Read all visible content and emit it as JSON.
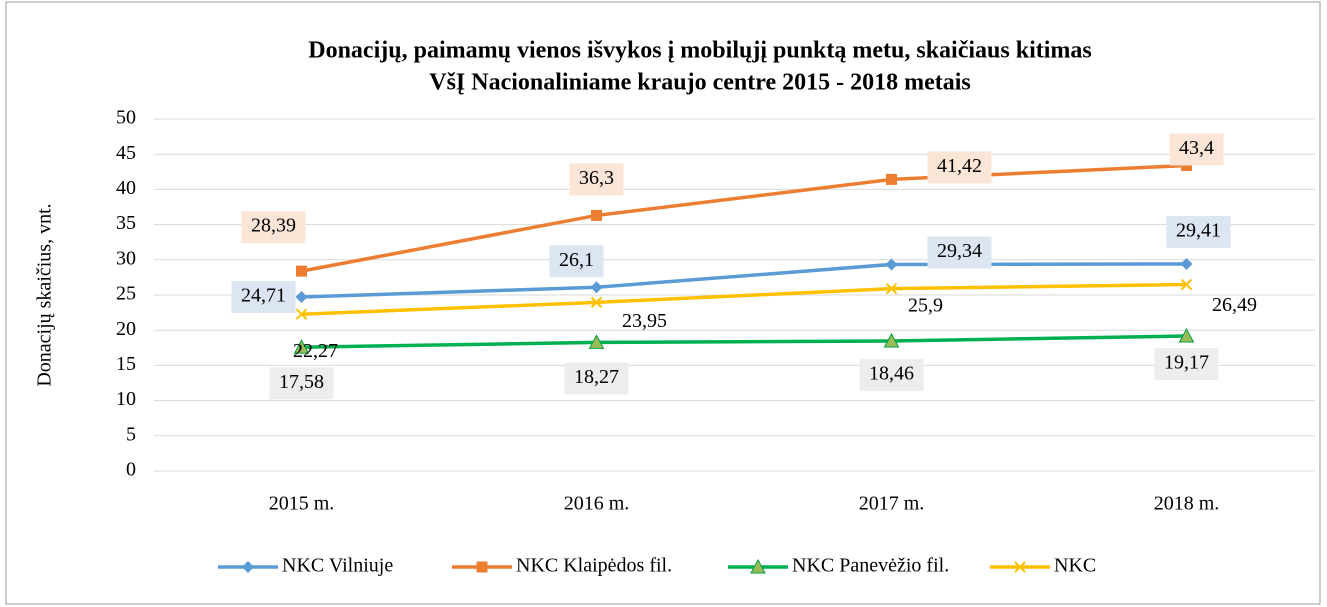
{
  "chart_data": {
    "type": "line",
    "title": [
      "Donacijų, paimamų vienos išvykos į mobilųjį punktą metu, skaičiaus kitimas",
      "VšĮ Nacionaliniame kraujo centre  2015 - 2018 metais"
    ],
    "y_label": "Donacijų skaičius, vnt.",
    "categories": [
      "2015 m.",
      "2016 m.",
      "2017 m.",
      "2018 m."
    ],
    "series": [
      {
        "name": "NKC Vilniuje",
        "color": "#5b9bd5",
        "marker": "diamond",
        "values": [
          24.71,
          26.1,
          29.34,
          29.41
        ],
        "value_labels": [
          "24,71",
          "26,1",
          "29,34",
          "29,41"
        ]
      },
      {
        "name": "NKC Klaipėdos fil.",
        "color": "#ed7d31",
        "marker": "square",
        "values": [
          28.39,
          36.3,
          41.42,
          43.4
        ],
        "value_labels": [
          "28,39",
          "36,3",
          "41,42",
          "43,4"
        ]
      },
      {
        "name": "NKC Panevėžio fil.",
        "color": "#00b050",
        "marker": "triangle",
        "values": [
          17.58,
          18.27,
          18.46,
          19.17
        ],
        "value_labels": [
          "17,58",
          "18,27",
          "18,46",
          "19,17"
        ]
      },
      {
        "name": "NKC",
        "color": "#ffc000",
        "marker": "x",
        "values": [
          22.27,
          23.95,
          25.9,
          26.49
        ],
        "value_labels": [
          "22,27",
          "23,95",
          "25,9",
          "26,49"
        ]
      }
    ],
    "ylim": [
      0,
      50
    ],
    "yticks": [
      0,
      5,
      10,
      15,
      20,
      25,
      30,
      35,
      40,
      45,
      50
    ],
    "grid": true,
    "legend": "bottom"
  }
}
